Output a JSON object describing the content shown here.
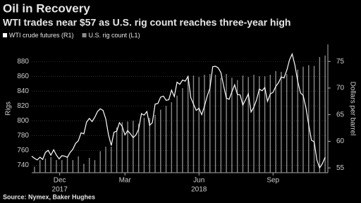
{
  "chart_data": {
    "type": "bar-line",
    "title": "Oil in Recovery",
    "subtitle": "WTI trades near $57 as U.S. rig count reaches three-year high",
    "source": "Source: Nymex, Baker Hughes",
    "ylabel": "Rigs",
    "y2label": "Dollars per barrel",
    "xlim": [
      0,
      54
    ],
    "xticks": [
      {
        "value": 5.1,
        "label": "Dec"
      },
      {
        "value": 17,
        "label": "Mar"
      },
      {
        "value": 30.5,
        "label": "Jun"
      },
      {
        "value": 44,
        "label": "Sep"
      }
    ],
    "xticks_year": [
      {
        "value": 5.1,
        "label": "2017"
      },
      {
        "value": 30.5,
        "label": "2018"
      }
    ],
    "ylim": [
      730,
      903
    ],
    "yticks": [
      740,
      760,
      780,
      800,
      820,
      840,
      860,
      880
    ],
    "y2lim": [
      54.1,
      78.2
    ],
    "y2ticks": [
      55,
      60,
      65,
      70,
      75
    ],
    "grid": true,
    "series": [
      {
        "name": "WTI crude futures (R1)",
        "color": "#ffffff",
        "kind": "line",
        "axis": "y2",
        "x": [
          0,
          0.5,
          1,
          1.5,
          2,
          2.5,
          3,
          3.5,
          4,
          4.5,
          5,
          5.5,
          6,
          6.5,
          7,
          7.5,
          8,
          8.5,
          9,
          9.5,
          10,
          10.5,
          11,
          11.5,
          12,
          12.5,
          13,
          13.5,
          14,
          14.5,
          15,
          15.5,
          16,
          16.5,
          17,
          17.5,
          18,
          18.5,
          19,
          19.5,
          20,
          20.5,
          21,
          21.5,
          22,
          22.5,
          23,
          23.5,
          24,
          24.5,
          25,
          25.5,
          26,
          26.5,
          27,
          27.5,
          28,
          28.5,
          29,
          29.5,
          30,
          30.5,
          31,
          31.5,
          32,
          32.5,
          33,
          33.5,
          34,
          34.5,
          35,
          35.5,
          36,
          36.5,
          37,
          37.5,
          38,
          38.5,
          39,
          39.5,
          40,
          40.5,
          41,
          41.5,
          42,
          42.5,
          43,
          43.5,
          44,
          44.5,
          45,
          45.5,
          46,
          46.5,
          47,
          47.5,
          48,
          48.5,
          49,
          49.5,
          50,
          50.5,
          51,
          51.5,
          52,
          52.5,
          53,
          53.5
        ],
        "values": [
          57.2,
          56.8,
          56.5,
          57.0,
          56.6,
          57.9,
          58.3,
          57.4,
          58.4,
          57.4,
          56.7,
          57.3,
          57.2,
          57.0,
          57.9,
          58.5,
          59.6,
          60.1,
          61.6,
          61.4,
          63.6,
          64.3,
          63.7,
          64.5,
          65.6,
          66.1,
          65.8,
          64.2,
          61.2,
          59.2,
          61.7,
          61.9,
          63.5,
          62.8,
          61.2,
          62.0,
          61.4,
          60.7,
          61.2,
          62.3,
          65.2,
          64.9,
          65.6,
          63.0,
          63.5,
          67.0,
          67.1,
          68.3,
          68.5,
          67.7,
          67.8,
          69.6,
          68.4,
          71.1,
          70.7,
          71.5,
          71.3,
          72.2,
          68.2,
          67.0,
          65.8,
          66.2,
          65.0,
          66.6,
          68.5,
          70.0,
          74.0,
          74.1,
          73.8,
          72.9,
          70.4,
          68.1,
          67.9,
          69.3,
          70.6,
          68.8,
          68.7,
          66.8,
          67.8,
          68.9,
          65.5,
          66.4,
          67.8,
          69.8,
          69.5,
          70.1,
          67.5,
          68.9,
          69.2,
          70.3,
          71.0,
          72.1,
          71.9,
          73.3,
          75.3,
          76.4,
          74.3,
          71.3,
          69.1,
          68.6,
          66.3,
          63.1,
          60.2,
          59.9,
          56.5,
          55.0,
          55.8,
          57.0
        ]
      },
      {
        "name": "U.S. rig count (L1)",
        "color": "#8a8a8a",
        "kind": "bar",
        "axis": "y",
        "x": [
          0.5,
          1.5,
          2.5,
          3.5,
          4.5,
          5.5,
          6.5,
          7.5,
          8.5,
          9.5,
          10.5,
          11.5,
          12.5,
          13.5,
          14.5,
          15.5,
          16.5,
          17.5,
          18.5,
          19.5,
          20.5,
          21.5,
          22.5,
          23.5,
          24.5,
          25.5,
          26.5,
          27.5,
          28.5,
          29.5,
          30.5,
          31.5,
          32.5,
          33.5,
          34.5,
          35.5,
          36.5,
          37.5,
          38.5,
          39.5,
          40.5,
          41.5,
          42.5,
          43.5,
          44.5,
          45.5,
          46.5,
          47.5,
          48.5,
          49.5,
          50.5,
          51.5,
          52.5,
          53.5
        ],
        "values": [
          738,
          747,
          749,
          751,
          747,
          747,
          752,
          747,
          752,
          742,
          750,
          747,
          759,
          765,
          765,
          791,
          798,
          799,
          800,
          796,
          804,
          804,
          808,
          815,
          820,
          825,
          834,
          844,
          859,
          861,
          859,
          862,
          863,
          862,
          858,
          863,
          858,
          855,
          861,
          859,
          862,
          860,
          860,
          862,
          867,
          866,
          863,
          861,
          869,
          873,
          875,
          874,
          886,
          888
        ]
      }
    ]
  }
}
